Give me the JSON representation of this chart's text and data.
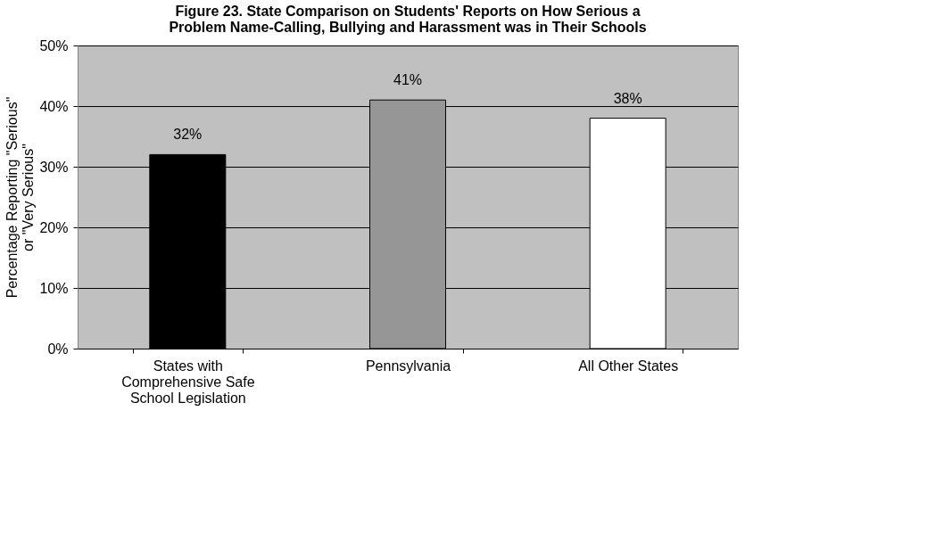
{
  "chart_data": {
    "type": "bar",
    "title": "Figure 23. State Comparison on Students' Reports on How Serious a Problem Name-Calling, Bullying and Harassment was in Their Schools",
    "ylabel": "Percentage Reporting \"Serious\" or \"Very Serious\"",
    "categories": [
      "States with Comprehensive Safe School Legislation",
      "Pennsylvania",
      "All Other States"
    ],
    "values": [
      32,
      41,
      38
    ],
    "colors": [
      "#000000",
      "#969696",
      "#ffffff"
    ],
    "value_labels": [
      "32%",
      "41%",
      "38%"
    ],
    "ylim": [
      0,
      50
    ],
    "yticks": [
      {
        "value": 0,
        "label": "0%"
      },
      {
        "value": 10,
        "label": "10%"
      },
      {
        "value": 20,
        "label": "20%"
      },
      {
        "value": 30,
        "label": "30%"
      },
      {
        "value": 40,
        "label": "40%"
      },
      {
        "value": 50,
        "label": "50%"
      }
    ],
    "grid": "y"
  }
}
